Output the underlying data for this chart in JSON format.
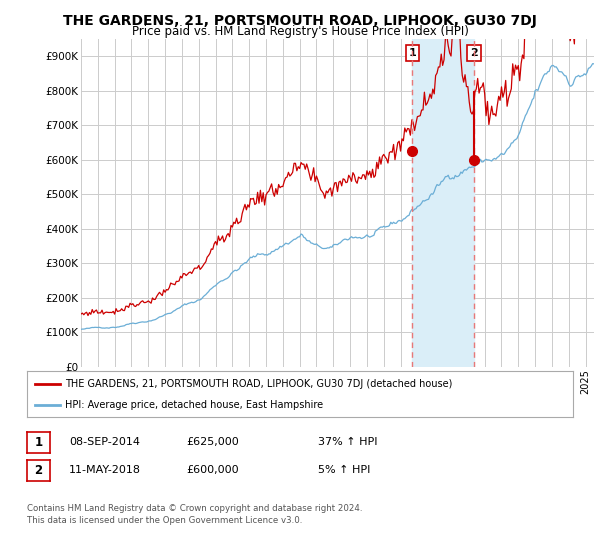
{
  "title": "THE GARDENS, 21, PORTSMOUTH ROAD, LIPHOOK, GU30 7DJ",
  "subtitle": "Price paid vs. HM Land Registry's House Price Index (HPI)",
  "ylabel_ticks": [
    "£0",
    "£100K",
    "£200K",
    "£300K",
    "£400K",
    "£500K",
    "£600K",
    "£700K",
    "£800K",
    "£900K"
  ],
  "ytick_vals": [
    0,
    100000,
    200000,
    300000,
    400000,
    500000,
    600000,
    700000,
    800000,
    900000
  ],
  "ylim": [
    0,
    950000
  ],
  "xlim_start": 1995.0,
  "xlim_end": 2025.5,
  "transaction1_date": 2014.69,
  "transaction1_price": 625000,
  "transaction2_date": 2018.36,
  "transaction2_price": 600000,
  "legend_line1": "THE GARDENS, 21, PORTSMOUTH ROAD, LIPHOOK, GU30 7DJ (detached house)",
  "legend_line2": "HPI: Average price, detached house, East Hampshire",
  "table_row1": [
    "1",
    "08-SEP-2014",
    "£625,000",
    "37% ↑ HPI"
  ],
  "table_row2": [
    "2",
    "11-MAY-2018",
    "£600,000",
    "5% ↑ HPI"
  ],
  "footnote1": "Contains HM Land Registry data © Crown copyright and database right 2024.",
  "footnote2": "This data is licensed under the Open Government Licence v3.0.",
  "hpi_color": "#6baed6",
  "price_color": "#cc0000",
  "shade_color": "#daeef8",
  "grid_color": "#cccccc",
  "background_color": "#ffffff",
  "vline_color": "#e87878"
}
